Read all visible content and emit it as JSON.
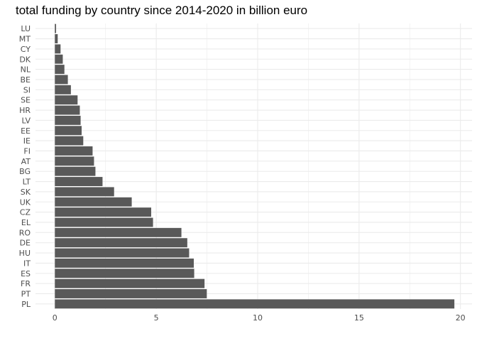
{
  "chart_data": {
    "type": "bar",
    "orientation": "horizontal",
    "title": "total funding by country since 2014-2020 in billion euro",
    "xlabel": "",
    "ylabel": "",
    "xlim": [
      -0.9,
      20.6
    ],
    "xticks": [
      0,
      5,
      10,
      15,
      20
    ],
    "grid": true,
    "bar_color": "#595959",
    "grid_color": "#ebebeb",
    "categories": [
      "LU",
      "MT",
      "CY",
      "DK",
      "NL",
      "BE",
      "SI",
      "SE",
      "HR",
      "LV",
      "EE",
      "IE",
      "FI",
      "AT",
      "BG",
      "LT",
      "SK",
      "UK",
      "CZ",
      "EL",
      "RO",
      "DE",
      "HU",
      "IT",
      "ES",
      "FR",
      "PT",
      "PL"
    ],
    "values": [
      0.06,
      0.14,
      0.28,
      0.39,
      0.47,
      0.64,
      0.79,
      1.12,
      1.23,
      1.27,
      1.32,
      1.4,
      1.86,
      1.93,
      2.0,
      2.35,
      2.92,
      3.79,
      4.75,
      4.84,
      6.24,
      6.53,
      6.62,
      6.85,
      6.87,
      7.38,
      7.49,
      19.7
    ]
  }
}
